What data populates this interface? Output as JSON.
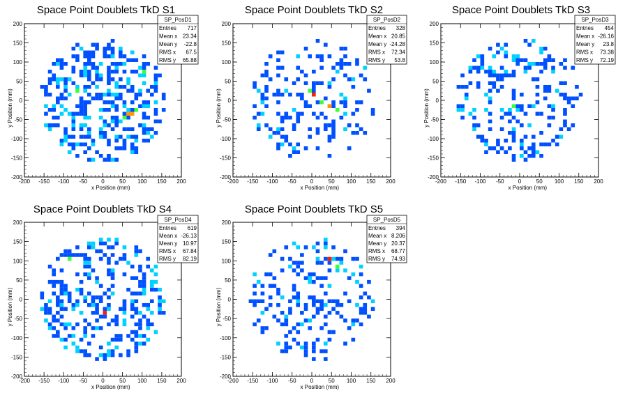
{
  "chart_data": [
    {
      "type": "heatmap",
      "title": "Space Point Doublets TkD S1",
      "xlabel": "x Position (mm)",
      "ylabel": "y Position (mm)",
      "xlim": [
        -200,
        200
      ],
      "ylim": [
        -200,
        200
      ],
      "xticks": [
        -200,
        -150,
        -100,
        -50,
        0,
        50,
        100,
        150,
        200
      ],
      "yticks": [
        -200,
        -150,
        -100,
        -50,
        0,
        50,
        100,
        150,
        200
      ],
      "stats": {
        "name": "SP_PosD1",
        "rows": [
          [
            "Entries",
            "717"
          ],
          [
            "Mean x",
            "23.34"
          ],
          [
            "Mean y",
            "-22.8"
          ],
          [
            "RMS x",
            "67.5"
          ],
          [
            "RMS y",
            "65.88"
          ]
        ]
      },
      "entries": 717,
      "mean_x": 23.34,
      "mean_y": -22.8,
      "rms_x": 67.5,
      "rms_y": 65.88,
      "hot_spots": [
        [
          70,
          -40,
          4
        ],
        [
          60,
          -35,
          4
        ],
        [
          80,
          -30,
          3
        ],
        [
          50,
          -45,
          3
        ],
        [
          -70,
          20,
          3
        ],
        [
          100,
          70,
          3
        ],
        [
          90,
          60,
          2
        ],
        [
          -60,
          -70,
          2
        ],
        [
          20,
          -60,
          2
        ],
        [
          110,
          -20,
          2
        ],
        [
          -40,
          -90,
          2
        ],
        [
          30,
          -100,
          2
        ]
      ]
    },
    {
      "type": "heatmap",
      "title": "Space Point Doublets TkD S2",
      "xlabel": "x Position (mm)",
      "ylabel": "y Position (mm)",
      "xlim": [
        -200,
        200
      ],
      "ylim": [
        -200,
        200
      ],
      "xticks": [
        -200,
        -150,
        -100,
        -50,
        0,
        50,
        100,
        150,
        200
      ],
      "yticks": [
        -200,
        -150,
        -100,
        -50,
        0,
        50,
        100,
        150,
        200
      ],
      "stats": {
        "name": "SP_PosD2",
        "rows": [
          [
            "Entries",
            "328"
          ],
          [
            "Mean x",
            "20.85"
          ],
          [
            "Mean y",
            "-24.28"
          ],
          [
            "RMS x",
            "72.34"
          ],
          [
            "RMS y",
            "53.8"
          ]
        ]
      },
      "entries": 328,
      "mean_x": 20.85,
      "mean_y": -24.28,
      "rms_x": 72.34,
      "rms_y": 53.8,
      "hot_spots": [
        [
          0,
          10,
          5
        ],
        [
          40,
          -20,
          4
        ],
        [
          20,
          -10,
          3
        ],
        [
          60,
          -30,
          3
        ],
        [
          -10,
          20,
          3
        ],
        [
          80,
          -40,
          2
        ],
        [
          100,
          50,
          2
        ],
        [
          -50,
          -30,
          2
        ]
      ]
    },
    {
      "type": "heatmap",
      "title": "Space Point Doublets TkD S3",
      "xlabel": "x Position (mm)",
      "ylabel": "y Position (mm)",
      "xlim": [
        -200,
        200
      ],
      "ylim": [
        -200,
        200
      ],
      "xticks": [
        -200,
        -150,
        -100,
        -50,
        0,
        50,
        100,
        150,
        200
      ],
      "yticks": [
        -200,
        -150,
        -100,
        -50,
        0,
        50,
        100,
        150,
        200
      ],
      "stats": {
        "name": "SP_PosD3",
        "rows": [
          [
            "Entries",
            "454"
          ],
          [
            "Mean x",
            "-26.16"
          ],
          [
            "Mean y",
            "23.8"
          ],
          [
            "RMS x",
            "73.38"
          ],
          [
            "RMS y",
            "72.19"
          ]
        ]
      },
      "entries": 454,
      "mean_x": -26.16,
      "mean_y": 23.8,
      "rms_x": 73.38,
      "rms_y": 72.19,
      "hot_spots": [
        [
          -20,
          -20,
          3
        ],
        [
          -10,
          -30,
          2
        ],
        [
          -100,
          80,
          2
        ],
        [
          50,
          120,
          2
        ],
        [
          20,
          90,
          2
        ]
      ]
    },
    {
      "type": "heatmap",
      "title": "Space Point Doublets TkD S4",
      "xlabel": "x Position (mm)",
      "ylabel": "y Position (mm)",
      "xlim": [
        -200,
        200
      ],
      "ylim": [
        -200,
        200
      ],
      "xticks": [
        -200,
        -150,
        -100,
        -50,
        0,
        50,
        100,
        150,
        200
      ],
      "yticks": [
        -200,
        -150,
        -100,
        -50,
        0,
        50,
        100,
        150,
        200
      ],
      "stats": {
        "name": "SP_PosD4",
        "rows": [
          [
            "Entries",
            "619"
          ],
          [
            "Mean x",
            "-26.13"
          ],
          [
            "Mean y",
            "10.97"
          ],
          [
            "RMS x",
            "67.84"
          ],
          [
            "RMS y",
            "82.19"
          ]
        ]
      },
      "entries": 619,
      "mean_x": -26.13,
      "mean_y": 10.97,
      "rms_x": 67.84,
      "rms_y": 82.19,
      "hot_spots": [
        [
          0,
          -35,
          5
        ],
        [
          -90,
          100,
          3
        ],
        [
          -30,
          -20,
          2
        ],
        [
          -80,
          -120,
          2
        ],
        [
          20,
          10,
          2
        ],
        [
          -40,
          60,
          2
        ]
      ]
    },
    {
      "type": "heatmap",
      "title": "Space Point Doublets TkD S5",
      "xlabel": "x Position (mm)",
      "ylabel": "y Position (mm)",
      "xlim": [
        -200,
        200
      ],
      "ylim": [
        -200,
        200
      ],
      "xticks": [
        -200,
        -150,
        -100,
        -50,
        0,
        50,
        100,
        150,
        200
      ],
      "yticks": [
        -200,
        -150,
        -100,
        -50,
        0,
        50,
        100,
        150,
        200
      ],
      "stats": {
        "name": "SP_PosD5",
        "rows": [
          [
            "Entries",
            "394"
          ],
          [
            "Mean x",
            "8.206"
          ],
          [
            "Mean y",
            "20.37"
          ],
          [
            "RMS x",
            "68.77"
          ],
          [
            "RMS y",
            "74.93"
          ]
        ]
      },
      "entries": 394,
      "mean_x": 8.206,
      "mean_y": 20.37,
      "rms_x": 68.77,
      "rms_y": 74.93,
      "hot_spots": [
        [
          40,
          100,
          5
        ],
        [
          60,
          80,
          3
        ],
        [
          -60,
          80,
          2
        ],
        [
          30,
          130,
          2
        ],
        [
          -10,
          -60,
          2
        ],
        [
          -80,
          0,
          2
        ]
      ]
    }
  ],
  "colors": {
    "palette": [
      "#1a1aff",
      "#0050ff",
      "#0096ff",
      "#00d2ff",
      "#00ffb4",
      "#3cff3c",
      "#c8ff00",
      "#ff9600",
      "#ff1e00"
    ],
    "frame": "#000000",
    "background": "#ffffff"
  }
}
